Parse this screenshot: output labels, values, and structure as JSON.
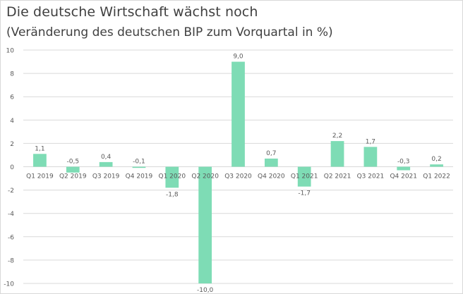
{
  "chart_data": {
    "type": "bar",
    "title": "Die deutsche Wirtschaft wächst noch",
    "subtitle": "(Veränderung des deutschen BIP zum Vorquartal in %)",
    "categories": [
      "Q1 2019",
      "Q2 2019",
      "Q3 2019",
      "Q4 2019",
      "Q1 2020",
      "Q2 2020",
      "Q3 2020",
      "Q4 2020",
      "Q1 2021",
      "Q2 2021",
      "Q3 2021",
      "Q4 2021",
      "Q1 2022"
    ],
    "values": [
      1.1,
      -0.5,
      0.4,
      -0.1,
      -1.8,
      -10.0,
      9.0,
      0.7,
      -1.7,
      2.2,
      1.7,
      -0.3,
      0.2
    ],
    "value_labels": [
      "1,1",
      "-0,5",
      "0,4",
      "-0,1",
      "-1,8",
      "-10,0",
      "9,0",
      "0,7",
      "-1,7",
      "2,2",
      "1,7",
      "-0,3",
      "0,2"
    ],
    "y_ticks": [
      10,
      8,
      6,
      4,
      2,
      0,
      -2,
      -4,
      -6,
      -8,
      -10
    ],
    "ylim": [
      -10,
      10
    ],
    "grid": true,
    "legend": "none",
    "bar_color": "#7edcb5",
    "grid_color": "#d9d9d9",
    "text_color": "#595959"
  }
}
